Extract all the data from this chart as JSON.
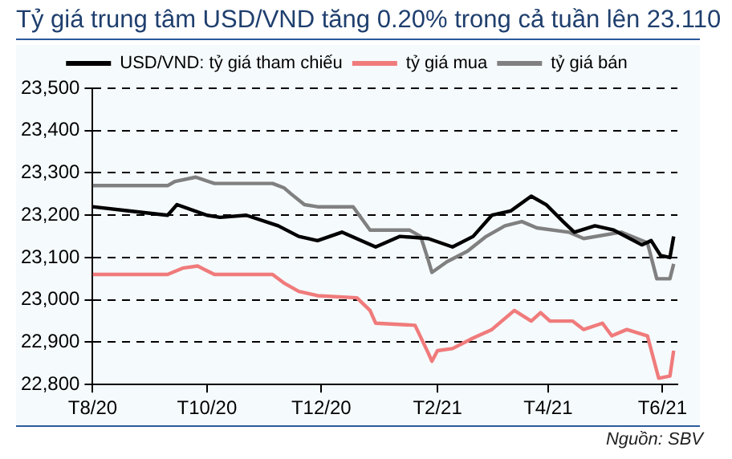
{
  "chart_data": {
    "type": "line",
    "title": "Tỷ giá trung tâm USD/VND tăng 0.20% trong cả tuần lên 23.110",
    "annotations": [
      "Nguồn: SBV"
    ],
    "series": [
      {
        "name": "USD/VND: tỷ giá tham chiếu",
        "color": "#000000",
        "x": [
          "2020-08-01",
          "2020-08-21",
          "2020-09-10",
          "2020-09-15",
          "2020-10-01",
          "2020-10-08",
          "2020-10-22",
          "2020-11-08",
          "2020-11-19",
          "2020-11-29",
          "2020-12-12",
          "2020-12-30",
          "2021-01-12",
          "2021-01-27",
          "2021-02-09",
          "2021-02-20",
          "2021-03-02",
          "2021-03-12",
          "2021-03-23",
          "2021-03-31",
          "2021-04-09",
          "2021-04-15",
          "2021-04-26",
          "2021-05-06",
          "2021-05-21",
          "2021-05-26",
          "2021-05-31",
          "2021-06-05",
          "2021-06-07"
        ],
        "values": [
          23220,
          23210,
          23200,
          23225,
          23200,
          23195,
          23200,
          23175,
          23150,
          23140,
          23160,
          23125,
          23150,
          23145,
          23125,
          23150,
          23200,
          23210,
          23245,
          23225,
          23185,
          23160,
          23175,
          23165,
          23130,
          23140,
          23105,
          23100,
          23150
        ]
      },
      {
        "name": "tỷ giá mua",
        "color": "#f07b7b",
        "x": [
          "2020-08-01",
          "2020-09-10",
          "2020-09-18",
          "2020-09-26",
          "2020-10-05",
          "2020-11-05",
          "2020-11-11",
          "2020-11-19",
          "2020-11-29",
          "2020-12-20",
          "2020-12-27",
          "2020-12-30",
          "2021-01-20",
          "2021-01-27",
          "2021-01-29",
          "2021-02-01",
          "2021-02-09",
          "2021-02-20",
          "2021-03-02",
          "2021-03-14",
          "2021-03-23",
          "2021-03-28",
          "2021-04-02",
          "2021-04-14",
          "2021-04-20",
          "2021-04-30",
          "2021-05-05",
          "2021-05-13",
          "2021-05-24",
          "2021-05-30",
          "2021-06-05",
          "2021-06-07"
        ],
        "values": [
          23060,
          23060,
          23075,
          23080,
          23060,
          23060,
          23040,
          23020,
          23010,
          23005,
          22975,
          22945,
          22940,
          22875,
          22855,
          22880,
          22885,
          22910,
          22930,
          22975,
          22950,
          22970,
          22950,
          22950,
          22930,
          22945,
          22915,
          22930,
          22915,
          22815,
          22820,
          22880
        ]
      },
      {
        "name": "tỷ giá bán",
        "color": "#808080",
        "x": [
          "2020-08-01",
          "2020-09-10",
          "2020-09-14",
          "2020-09-25",
          "2020-10-05",
          "2020-11-05",
          "2020-11-11",
          "2020-11-15",
          "2020-11-22",
          "2020-11-29",
          "2020-12-18",
          "2020-12-27",
          "2021-01-17",
          "2021-01-23",
          "2021-01-27",
          "2021-01-29",
          "2021-02-06",
          "2021-02-17",
          "2021-02-27",
          "2021-03-09",
          "2021-03-18",
          "2021-03-26",
          "2021-04-12",
          "2021-04-20",
          "2021-05-10",
          "2021-05-24",
          "2021-05-29",
          "2021-06-05",
          "2021-06-07"
        ],
        "values": [
          23270,
          23270,
          23280,
          23290,
          23275,
          23275,
          23265,
          23250,
          23225,
          23220,
          23220,
          23165,
          23165,
          23150,
          23095,
          23065,
          23090,
          23115,
          23150,
          23175,
          23185,
          23170,
          23160,
          23145,
          23160,
          23135,
          23050,
          23050,
          23085
        ]
      }
    ],
    "xlim": [
      "2020-08-01",
      "2021-06-09"
    ],
    "xticks": [
      {
        "value": "2020-08-01",
        "label": "T8/20"
      },
      {
        "value": "2020-10-01",
        "label": "T10/20"
      },
      {
        "value": "2020-12-01",
        "label": "T12/20"
      },
      {
        "value": "2021-02-01",
        "label": "T2/21"
      },
      {
        "value": "2021-04-01",
        "label": "T4/21"
      },
      {
        "value": "2021-06-01",
        "label": "T6/21"
      }
    ],
    "ylim": [
      22800,
      23500
    ],
    "yticks": [
      {
        "value": 22800,
        "label": "22,800"
      },
      {
        "value": 22900,
        "label": "22,900"
      },
      {
        "value": 23000,
        "label": "23,000"
      },
      {
        "value": 23100,
        "label": "23,100"
      },
      {
        "value": 23200,
        "label": "23,200"
      },
      {
        "value": 23300,
        "label": "23,300"
      },
      {
        "value": 23400,
        "label": "23,400"
      },
      {
        "value": 23500,
        "label": "23,500"
      }
    ],
    "grid": "y",
    "legend": "top",
    "marker": "none",
    "line_style": "solid"
  }
}
